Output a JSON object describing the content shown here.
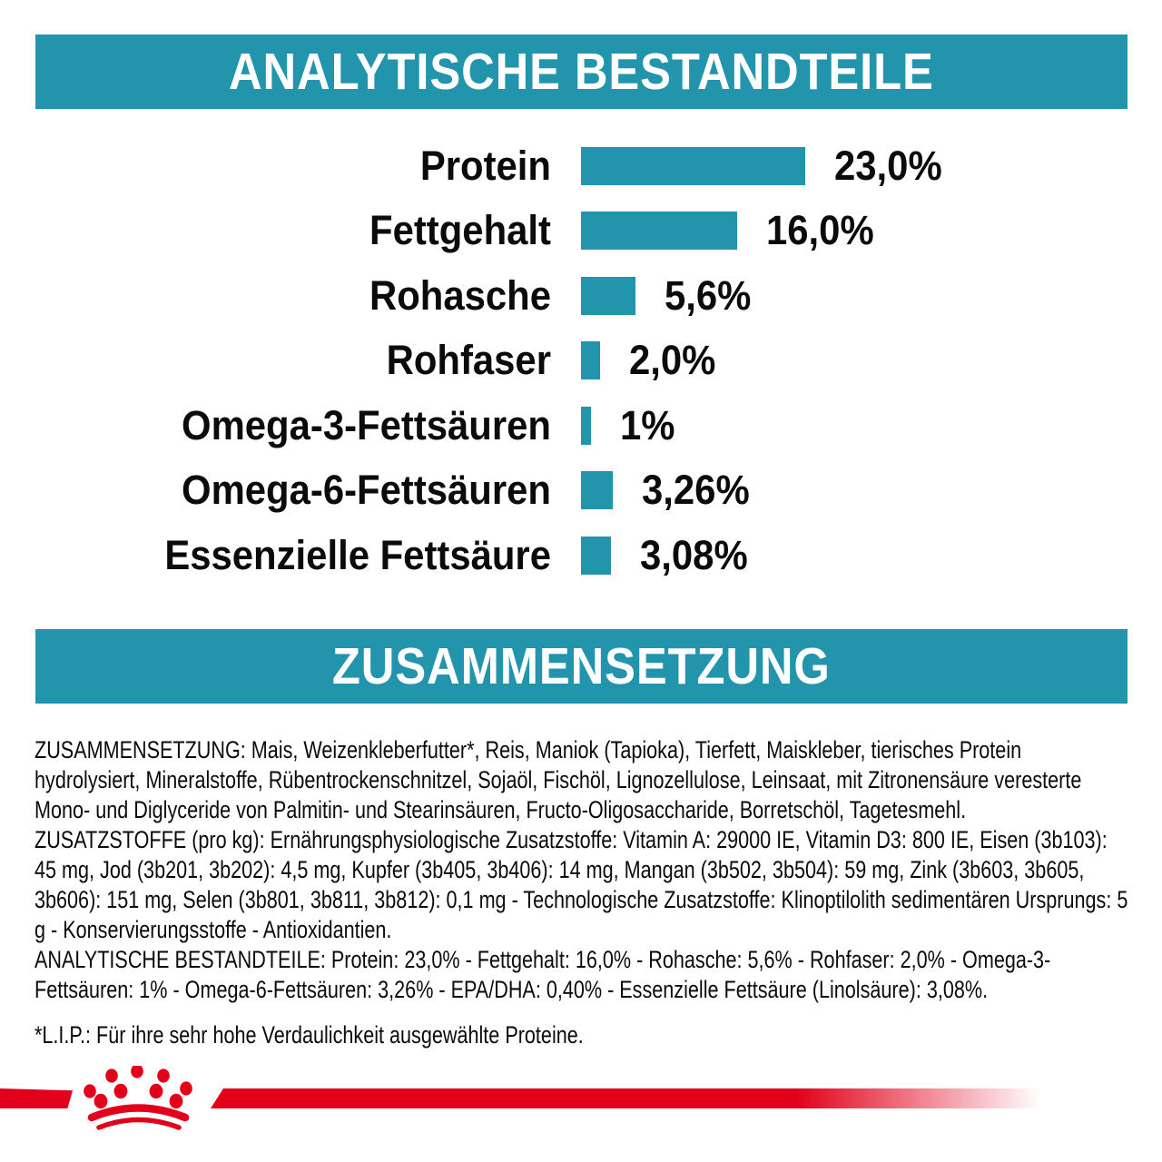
{
  "colors": {
    "teal": "#2295ad",
    "red": "#e2001a",
    "text": "#0b0b0b",
    "background": "#ffffff"
  },
  "sections": {
    "analytical": {
      "title": "ANALYTISCHE BESTANDTEILE"
    },
    "composition": {
      "title": "ZUSAMMENSETZUNG"
    }
  },
  "chart_data": {
    "type": "bar",
    "orientation": "horizontal",
    "title": "ANALYTISCHE BESTANDTEILE",
    "unit": "%",
    "categories": [
      "Protein",
      "Fettgehalt",
      "Rohasche",
      "Rohfaser",
      "Omega-3-Fettsäuren",
      "Omega-6-Fettsäuren",
      "Essenzielle Fettsäure"
    ],
    "values": [
      23.0,
      16.0,
      5.6,
      2.0,
      1.0,
      3.26,
      3.08
    ],
    "value_labels": [
      "23,0%",
      "16,0%",
      "5,6%",
      "2,0%",
      "1%",
      "3,26%",
      "3,08%"
    ],
    "xlim": [
      0,
      23.5
    ],
    "grid": false,
    "bar_color": "#2295ad",
    "label_position": "right-of-bar"
  },
  "body": {
    "paragraphs": [
      "ZUSAMMENSETZUNG: Mais, Weizenkleberfutter*, Reis, Maniok (Tapioka), Tierfett, Maiskleber, tierisches Protein hydrolysiert, Mineralstoffe, Rübentrockenschnitzel, Sojaöl, Fischöl, Lignozellulose, Leinsaat, mit Zitronensäure veresterte Mono- und Diglyceride von Palmitin- und Stearinsäuren, Fructo-Oligosaccharide, Borretschöl, Tagetesmehl.",
      "ZUSATZSTOFFE (pro kg): Ernährungsphysiologische Zusatzstoffe: Vitamin A: 29000 IE, Vitamin D3: 800 IE, Eisen (3b103): 45 mg, Jod (3b201, 3b202): 4,5 mg, Kupfer (3b405, 3b406): 14 mg, Mangan (3b502, 3b504): 59 mg, Zink (3b603, 3b605, 3b606): 151 mg, Selen (3b801, 3b811, 3b812): 0,1 mg - Technologische Zusatzstoffe: Klinoptilolith sedimentären Ursprungs: 5 g - Konservierungsstoffe - Antioxidantien.",
      "ANALYTISCHE BESTANDTEILE: Protein: 23,0% - Fettgehalt: 16,0% - Rohasche: 5,6% - Rohfaser: 2,0% - Omega-3-Fettsäuren: 1% - Omega-6-Fettsäuren: 3,26% - EPA/DHA: 0,40% - Essenzielle Fettsäure (Linolsäure): 3,08%."
    ],
    "footnote": "*L.I.P.: Für ihre sehr hohe Verdaulichkeit ausgewählte Proteine."
  },
  "footer": {
    "logo": "royal-canin-crown"
  }
}
